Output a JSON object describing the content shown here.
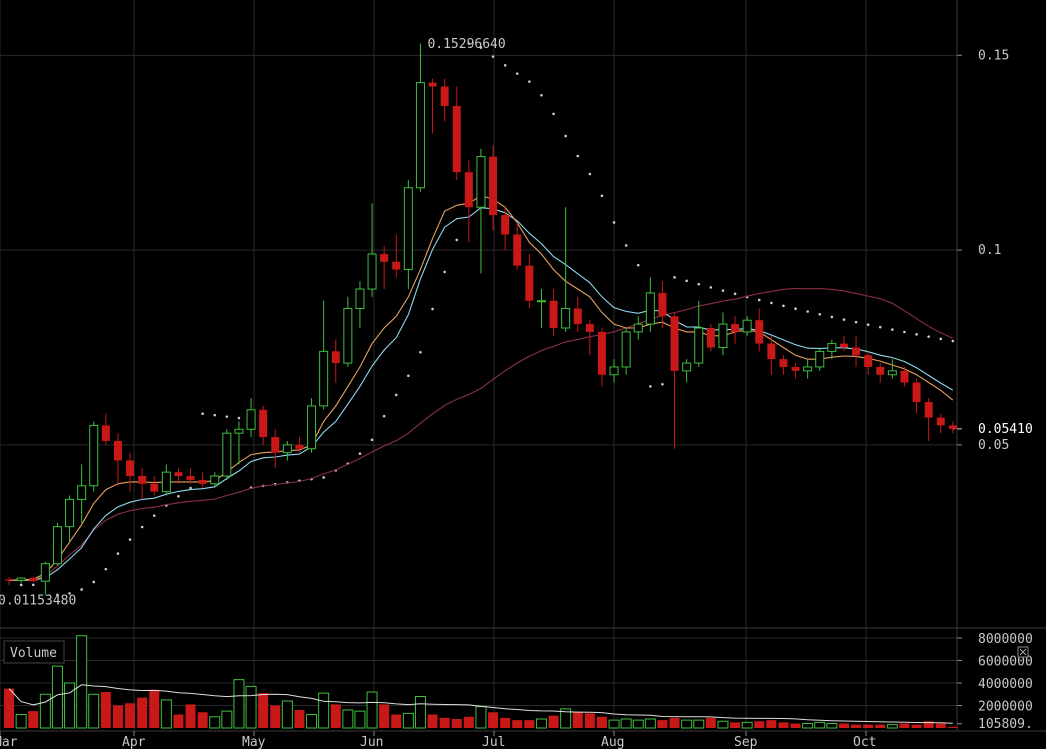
{
  "chart_data": {
    "type": "candlestick",
    "price_axis": {
      "ticks": [
        {
          "value": 0.05,
          "label": "0.05"
        },
        {
          "value": 0.1,
          "label": "0.1"
        },
        {
          "value": 0.15,
          "label": "0.15"
        }
      ],
      "range": [
        0.0035,
        0.1642
      ],
      "last_price_label": "0.05410",
      "last_price": 0.0541
    },
    "x_axis": {
      "months": [
        "Mar",
        "Apr",
        "May",
        "Jun",
        "Jul",
        "Aug",
        "Sep",
        "Oct"
      ]
    },
    "annotations": {
      "max_label": "0.15296640",
      "max_value": 0.1529664,
      "min_label": "0.01153480",
      "min_value": 0.0115348
    },
    "candles": [
      [
        0.0155,
        0.016,
        0.014,
        0.0152
      ],
      [
        0.0152,
        0.016,
        0.0145,
        0.0158
      ],
      [
        0.0158,
        0.0162,
        0.0148,
        0.015
      ],
      [
        0.015,
        0.02,
        0.0115,
        0.0195
      ],
      [
        0.0195,
        0.03,
        0.019,
        0.029
      ],
      [
        0.029,
        0.037,
        0.025,
        0.036
      ],
      [
        0.036,
        0.045,
        0.03,
        0.0395
      ],
      [
        0.0395,
        0.056,
        0.038,
        0.055
      ],
      [
        0.055,
        0.058,
        0.05,
        0.051
      ],
      [
        0.051,
        0.053,
        0.04,
        0.046
      ],
      [
        0.046,
        0.048,
        0.038,
        0.042
      ],
      [
        0.042,
        0.044,
        0.036,
        0.04
      ],
      [
        0.04,
        0.042,
        0.037,
        0.038
      ],
      [
        0.038,
        0.045,
        0.037,
        0.043
      ],
      [
        0.043,
        0.044,
        0.04,
        0.042
      ],
      [
        0.042,
        0.044,
        0.04,
        0.041
      ],
      [
        0.041,
        0.043,
        0.039,
        0.04
      ],
      [
        0.04,
        0.043,
        0.039,
        0.042
      ],
      [
        0.042,
        0.054,
        0.041,
        0.053
      ],
      [
        0.053,
        0.056,
        0.045,
        0.054
      ],
      [
        0.054,
        0.062,
        0.052,
        0.059
      ],
      [
        0.059,
        0.06,
        0.05,
        0.052
      ],
      [
        0.052,
        0.054,
        0.044,
        0.048
      ],
      [
        0.048,
        0.051,
        0.046,
        0.05
      ],
      [
        0.05,
        0.052,
        0.048,
        0.049
      ],
      [
        0.049,
        0.062,
        0.048,
        0.06
      ],
      [
        0.06,
        0.087,
        0.059,
        0.074
      ],
      [
        0.074,
        0.077,
        0.066,
        0.071
      ],
      [
        0.071,
        0.088,
        0.07,
        0.085
      ],
      [
        0.085,
        0.092,
        0.08,
        0.09
      ],
      [
        0.09,
        0.112,
        0.088,
        0.099
      ],
      [
        0.099,
        0.101,
        0.09,
        0.097
      ],
      [
        0.097,
        0.104,
        0.093,
        0.095
      ],
      [
        0.095,
        0.118,
        0.09,
        0.116
      ],
      [
        0.116,
        0.153,
        0.115,
        0.143
      ],
      [
        0.143,
        0.144,
        0.13,
        0.142
      ],
      [
        0.142,
        0.144,
        0.133,
        0.137
      ],
      [
        0.137,
        0.142,
        0.118,
        0.12
      ],
      [
        0.12,
        0.123,
        0.102,
        0.111
      ],
      [
        0.111,
        0.126,
        0.094,
        0.124
      ],
      [
        0.124,
        0.127,
        0.105,
        0.109
      ],
      [
        0.109,
        0.111,
        0.1,
        0.104
      ],
      [
        0.104,
        0.107,
        0.095,
        0.096
      ],
      [
        0.096,
        0.099,
        0.085,
        0.087
      ],
      [
        0.087,
        0.09,
        0.08,
        0.087
      ],
      [
        0.087,
        0.09,
        0.078,
        0.08
      ],
      [
        0.08,
        0.111,
        0.079,
        0.085
      ],
      [
        0.085,
        0.088,
        0.079,
        0.081
      ],
      [
        0.081,
        0.082,
        0.073,
        0.079
      ],
      [
        0.079,
        0.08,
        0.065,
        0.068
      ],
      [
        0.068,
        0.072,
        0.066,
        0.07
      ],
      [
        0.07,
        0.08,
        0.068,
        0.079
      ],
      [
        0.079,
        0.083,
        0.077,
        0.081
      ],
      [
        0.081,
        0.093,
        0.079,
        0.089
      ],
      [
        0.089,
        0.092,
        0.08,
        0.083
      ],
      [
        0.083,
        0.084,
        0.049,
        0.069
      ],
      [
        0.069,
        0.072,
        0.066,
        0.071
      ],
      [
        0.071,
        0.087,
        0.07,
        0.08
      ],
      [
        0.08,
        0.081,
        0.074,
        0.075
      ],
      [
        0.075,
        0.084,
        0.073,
        0.081
      ],
      [
        0.081,
        0.083,
        0.076,
        0.079
      ],
      [
        0.079,
        0.083,
        0.078,
        0.082
      ],
      [
        0.082,
        0.085,
        0.074,
        0.076
      ],
      [
        0.076,
        0.078,
        0.068,
        0.072
      ],
      [
        0.072,
        0.073,
        0.068,
        0.07
      ],
      [
        0.07,
        0.071,
        0.067,
        0.069
      ],
      [
        0.069,
        0.072,
        0.067,
        0.07
      ],
      [
        0.07,
        0.075,
        0.069,
        0.074
      ],
      [
        0.074,
        0.077,
        0.072,
        0.076
      ],
      [
        0.076,
        0.078,
        0.074,
        0.075
      ],
      [
        0.075,
        0.078,
        0.07,
        0.073
      ],
      [
        0.073,
        0.074,
        0.068,
        0.07
      ],
      [
        0.07,
        0.071,
        0.066,
        0.068
      ],
      [
        0.068,
        0.072,
        0.067,
        0.069
      ],
      [
        0.069,
        0.07,
        0.065,
        0.066
      ],
      [
        0.066,
        0.067,
        0.058,
        0.061
      ],
      [
        0.061,
        0.062,
        0.051,
        0.057
      ],
      [
        0.057,
        0.058,
        0.053,
        0.055
      ],
      [
        0.055,
        0.056,
        0.053,
        0.0541
      ]
    ],
    "ema_fast_orange": [
      0.0152,
      0.0153,
      0.0155,
      0.017,
      0.0205,
      0.025,
      0.0295,
      0.035,
      0.0385,
      0.04,
      0.0405,
      0.0405,
      0.0403,
      0.0405,
      0.0405,
      0.0405,
      0.0405,
      0.0408,
      0.043,
      0.0455,
      0.0475,
      0.048,
      0.0482,
      0.0485,
      0.0487,
      0.05,
      0.056,
      0.06,
      0.065,
      0.07,
      0.076,
      0.08,
      0.083,
      0.088,
      0.095,
      0.103,
      0.11,
      0.1115,
      0.112,
      0.114,
      0.113,
      0.111,
      0.107,
      0.102,
      0.099,
      0.095,
      0.092,
      0.09,
      0.088,
      0.084,
      0.081,
      0.08,
      0.08,
      0.081,
      0.0815,
      0.08,
      0.079,
      0.079,
      0.078,
      0.078,
      0.079,
      0.0795,
      0.079,
      0.077,
      0.075,
      0.073,
      0.072,
      0.072,
      0.0725,
      0.0728,
      0.0727,
      0.0722,
      0.0715,
      0.0705,
      0.0695,
      0.068,
      0.066,
      0.064,
      0.0615
    ]
  },
  "volume": {
    "label": "Volume",
    "ticks": [
      {
        "value": 8000000,
        "label": "8000000"
      },
      {
        "value": 6000000,
        "label": "6000000"
      },
      {
        "value": 4000000,
        "label": "4000000"
      },
      {
        "value": 2000000,
        "label": "2000000"
      }
    ],
    "last_volume_label": "105809.",
    "last_volume": 105809,
    "values": [
      3500000,
      1200000,
      1500000,
      3000000,
      5500000,
      4000000,
      8200000,
      3000000,
      3200000,
      2000000,
      2200000,
      2700000,
      3400000,
      2500000,
      1200000,
      2100000,
      1400000,
      1000000,
      1500000,
      4300000,
      3700000,
      3100000,
      2000000,
      2400000,
      1600000,
      1200000,
      3100000,
      2100000,
      1600000,
      1500000,
      3200000,
      2100000,
      1200000,
      1300000,
      2800000,
      1200000,
      900000,
      800000,
      1000000,
      1900000,
      1400000,
      900000,
      700000,
      700000,
      800000,
      1100000,
      1700000,
      1400000,
      1300000,
      1000000,
      700000,
      800000,
      700000,
      800000,
      700000,
      900000,
      700000,
      700000,
      900000,
      600000,
      500000,
      500000,
      600000,
      700000,
      500000,
      400000,
      400000,
      500000,
      400000,
      400000,
      300000,
      300000,
      300000,
      300000,
      400000,
      300000,
      600000,
      400000,
      105809
    ]
  },
  "colors": {
    "up": "#3fbf3f",
    "down": "#c81818",
    "ema_fast": "#e8a060",
    "ema_mid": "#8fd8f0",
    "ema_slow": "#8a3040",
    "psar": "#cccccc",
    "grid": "#2a2a2a",
    "text": "#c8c8c8",
    "last_price": "#d06060"
  }
}
